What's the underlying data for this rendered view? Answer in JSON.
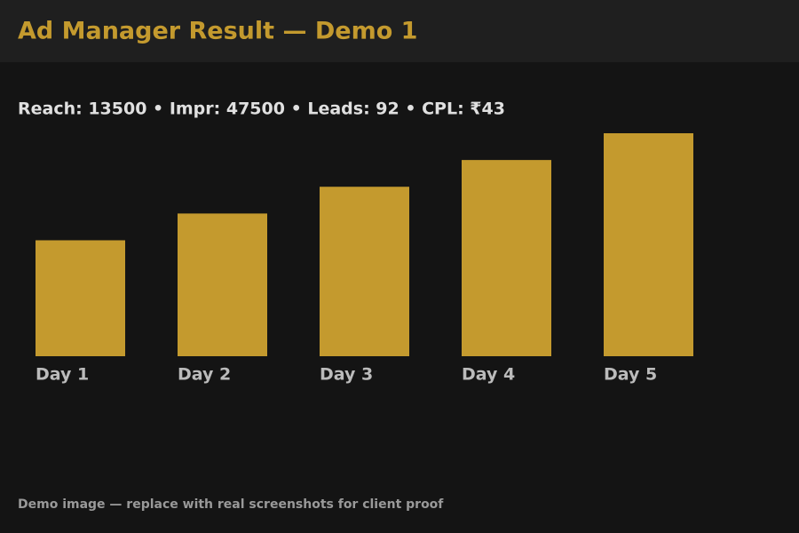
{
  "chart_data": {
    "type": "bar",
    "title": "Ad Manager Result — Demo 1",
    "subtitle": "Reach: 13500 • Impr: 47500 • Leads: 92 • CPL: ₹43",
    "footnote": "Demo image — replace with real screenshots for client proof",
    "categories": [
      "Day 1",
      "Day 2",
      "Day 3",
      "Day 4",
      "Day 5"
    ],
    "values": [
      130,
      160,
      190,
      220,
      250
    ],
    "color": "#c49a2e",
    "ylim": [
      0,
      250
    ]
  }
}
